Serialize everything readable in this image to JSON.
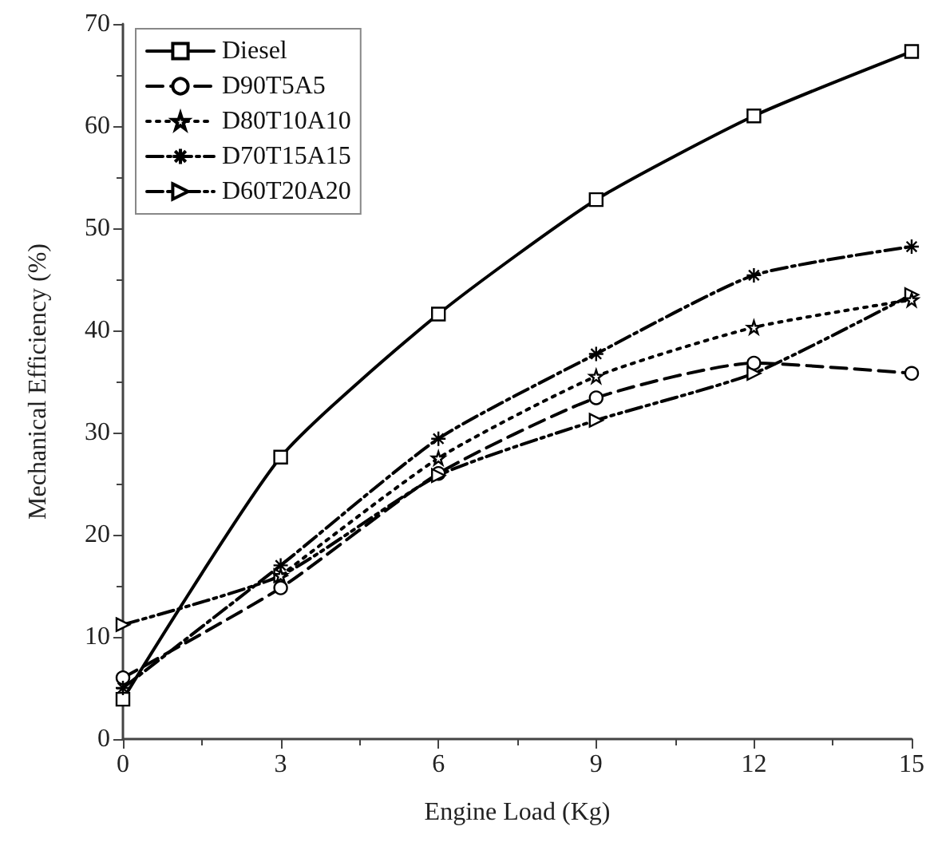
{
  "chart_data": {
    "type": "line",
    "xlabel": "Engine Load (Kg)",
    "ylabel": "Mechanical Efficiency (%)",
    "x": [
      0,
      3,
      6,
      9,
      12,
      15
    ],
    "series": [
      {
        "name": "Diesel",
        "color": "#000000",
        "marker": "square",
        "line_style": "solid",
        "values": [
          3.9,
          27.6,
          41.6,
          52.8,
          61,
          67.3
        ]
      },
      {
        "name": "D90T5A5",
        "color": "#000000",
        "marker": "circle",
        "line_style": "dashed",
        "values": [
          6,
          14.8,
          26,
          33.4,
          36.8,
          35.8
        ]
      },
      {
        "name": "D80T10A10",
        "color": "#000000",
        "marker": "star",
        "line_style": "dotted",
        "values": [
          null,
          16,
          27.5,
          35.5,
          40.3,
          43
        ]
      },
      {
        "name": "D70T15A15",
        "color": "#000000",
        "marker": "cross",
        "line_style": "dashed",
        "values": [
          5,
          17,
          29.4,
          37.7,
          45.4,
          48.2
        ]
      },
      {
        "name": "D60T20A20",
        "color": "#000000",
        "marker": "triangle",
        "line_style": "dashed",
        "values": [
          11.2,
          16,
          25.8,
          31.2,
          35.8,
          43.5
        ]
      }
    ],
    "xlim": [
      0,
      15
    ],
    "xticks": [
      0,
      3,
      6,
      9,
      12,
      15
    ],
    "ylim": [
      0,
      70
    ],
    "yticks": [
      0,
      10,
      20,
      30,
      40,
      50,
      60,
      70
    ],
    "grid": false,
    "legend": "top left"
  }
}
